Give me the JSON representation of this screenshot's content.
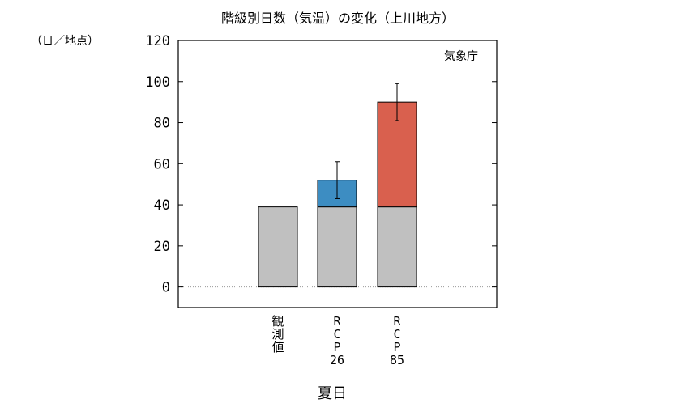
{
  "chart_data": {
    "type": "bar",
    "title": "階級別日数（気温）の変化（上川地方）",
    "ylabel": "（日／地点）",
    "xlabel": "夏日",
    "credit": "気象庁",
    "ylim": [
      -10,
      120
    ],
    "yticks": [
      0,
      20,
      40,
      60,
      80,
      100,
      120
    ],
    "grid": false,
    "zero_line": "dotted",
    "categories": [
      "観測値",
      "RCP26",
      "RCP85"
    ],
    "category_labels": [
      [
        "観",
        "測",
        "値"
      ],
      [
        "R",
        "C",
        "P",
        "26"
      ],
      [
        "R",
        "C",
        "P",
        "85"
      ]
    ],
    "series": [
      {
        "values": [
          39,
          39,
          39
        ],
        "color": "#c0c0c0"
      },
      {
        "values": [
          null,
          52,
          90
        ],
        "colors": [
          null,
          "#3d8dc2",
          "#d9604e"
        ]
      }
    ],
    "error_bars": [
      null,
      [
        43,
        61
      ],
      [
        81,
        99
      ]
    ]
  }
}
